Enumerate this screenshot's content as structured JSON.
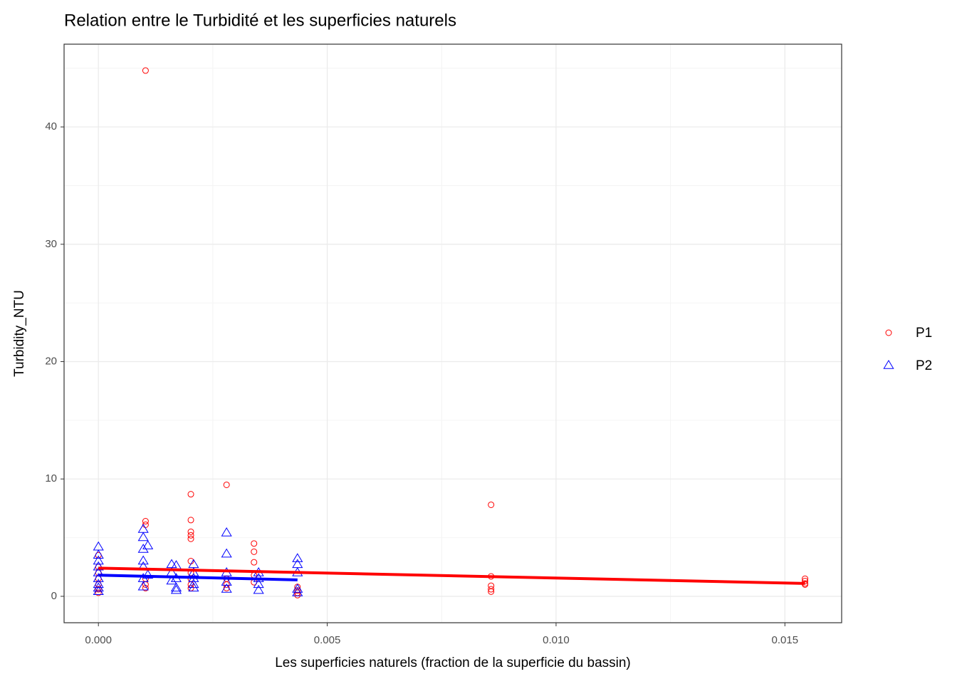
{
  "chart_data": {
    "type": "scatter",
    "title": "Relation entre le Turbidité et les superficies naturels",
    "x_label": "Les superficies naturels (fraction de la superficie du bassin)",
    "y_label": "Turbidity_NTU",
    "xlim": [
      -0.00075,
      0.01624
    ],
    "ylim": [
      -2.25,
      47.05
    ],
    "xticks": [
      {
        "value": 0,
        "label": "0.000"
      },
      0.005,
      {
        "value": 0.01,
        "label": "0.010"
      },
      0.015
    ],
    "yticks": [
      0,
      10,
      20,
      30,
      40
    ],
    "grid": true,
    "legend": "right",
    "series": [
      {
        "name": "P1",
        "color": "#ff0000",
        "marker": "circle",
        "x": [
          0,
          0,
          0,
          0,
          0,
          0,
          0,
          0.00103,
          0.00103,
          0.00103,
          0.00103,
          0.00103,
          0.00103,
          0.00202,
          0.00202,
          0.00202,
          0.00202,
          0.00202,
          0.00202,
          0.00202,
          0.00202,
          0.00202,
          0.00202,
          0.0028,
          0.0028,
          0.0028,
          0.0028,
          0.0034,
          0.0034,
          0.0034,
          0.0034,
          0.0034,
          0.00435,
          0.00435,
          0.00435,
          0.00435,
          0.00858,
          0.00858,
          0.00858,
          0.00858,
          0.00858,
          0.01544,
          0.01544,
          0.01544,
          0.01544
        ],
        "values": [
          0.3,
          0.6,
          1.0,
          1.5,
          2.0,
          2.5,
          3.5,
          44.8,
          6.4,
          6.1,
          1.5,
          1.0,
          0.7,
          8.7,
          6.5,
          5.5,
          5.2,
          4.9,
          3.0,
          2.0,
          1.5,
          1.0,
          0.7,
          9.5,
          1.5,
          1.0,
          0.7,
          4.5,
          3.8,
          2.9,
          1.8,
          1.2,
          0.8,
          0.5,
          0.3,
          0.1,
          7.8,
          1.7,
          0.9,
          0.6,
          0.4,
          1.5,
          1.3,
          1.1,
          1.0
        ],
        "trend": {
          "x": [
            0,
            0.01544
          ],
          "y": [
            2.4,
            1.1
          ]
        }
      },
      {
        "name": "P2",
        "color": "#0000ff",
        "marker": "triangle",
        "x": [
          0,
          0,
          0,
          0,
          0,
          0,
          0,
          0,
          0,
          0.00098,
          0.00098,
          0.00098,
          0.00098,
          0.00098,
          0.00098,
          0.00098,
          0.00108,
          0.00108,
          0.0016,
          0.0016,
          0.0016,
          0.0017,
          0.0017,
          0.0017,
          0.0017,
          0.00208,
          0.00208,
          0.00208,
          0.00208,
          0.00208,
          0.0028,
          0.0028,
          0.0028,
          0.0028,
          0.0028,
          0.0035,
          0.0035,
          0.0035,
          0.0035,
          0.00435,
          0.00435,
          0.00435,
          0.00435,
          0.00435
        ],
        "values": [
          4.2,
          3.5,
          3.0,
          2.5,
          2.0,
          1.5,
          1.0,
          0.7,
          0.4,
          5.7,
          5.0,
          4.0,
          3.0,
          2.5,
          1.5,
          0.8,
          4.3,
          1.8,
          2.7,
          2.0,
          1.3,
          2.6,
          1.5,
          0.7,
          0.5,
          2.7,
          2.0,
          1.5,
          1.0,
          0.7,
          5.4,
          3.6,
          2.0,
          1.2,
          0.6,
          2.0,
          1.5,
          1.0,
          0.5,
          3.2,
          2.7,
          2.0,
          0.6,
          0.3
        ],
        "trend": {
          "x": [
            0,
            0.00435
          ],
          "y": [
            1.8,
            1.4
          ]
        }
      }
    ]
  }
}
